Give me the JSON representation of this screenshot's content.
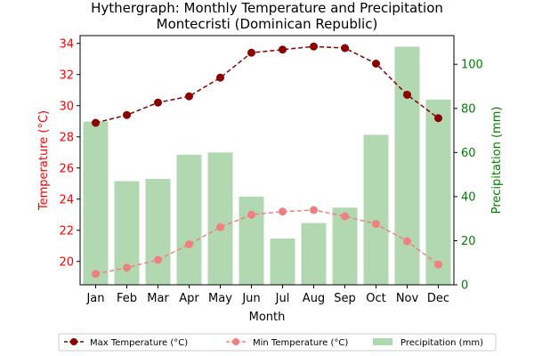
{
  "chart_data": {
    "type": "bar+line",
    "title_line1": "Hythergraph: Monthly Temperature and Precipitation",
    "title_line2": "Montecristi (Dominican Republic)",
    "xlabel": "Month",
    "ylabel_left": "Temperature (°C)",
    "ylabel_right": "Precipitation (mm)",
    "categories": [
      "Jan",
      "Feb",
      "Mar",
      "Apr",
      "May",
      "Jun",
      "Jul",
      "Aug",
      "Sep",
      "Oct",
      "Nov",
      "Dec"
    ],
    "ylim_left": [
      18.5,
      34.5
    ],
    "ylim_right": [
      0,
      113
    ],
    "yticks_left": [
      20,
      22,
      24,
      26,
      28,
      30,
      32,
      34
    ],
    "yticks_right": [
      0,
      20,
      40,
      60,
      80,
      100
    ],
    "series": [
      {
        "name": "Max Temperature (°C)",
        "kind": "line",
        "axis": "left",
        "color": "#8b0000",
        "dashed": true,
        "values": [
          28.9,
          29.4,
          30.2,
          30.6,
          31.8,
          33.4,
          33.6,
          33.8,
          33.7,
          32.7,
          30.7,
          29.2
        ]
      },
      {
        "name": "Min Temperature (°C)",
        "kind": "line",
        "axis": "left",
        "color": "#f08080",
        "dashed": true,
        "values": [
          19.2,
          19.6,
          20.1,
          21.1,
          22.2,
          23.0,
          23.2,
          23.3,
          22.9,
          22.4,
          21.3,
          19.8
        ]
      },
      {
        "name": "Precipitation (mm)",
        "kind": "bar",
        "axis": "right",
        "color": "#b2d8b2",
        "values": [
          74,
          47,
          48,
          59,
          60,
          40,
          21,
          28,
          35,
          68,
          108,
          84
        ]
      }
    ],
    "left_axis_color": "#ff0000",
    "right_axis_color": "#008000",
    "legend_placement": "bottom-center"
  }
}
